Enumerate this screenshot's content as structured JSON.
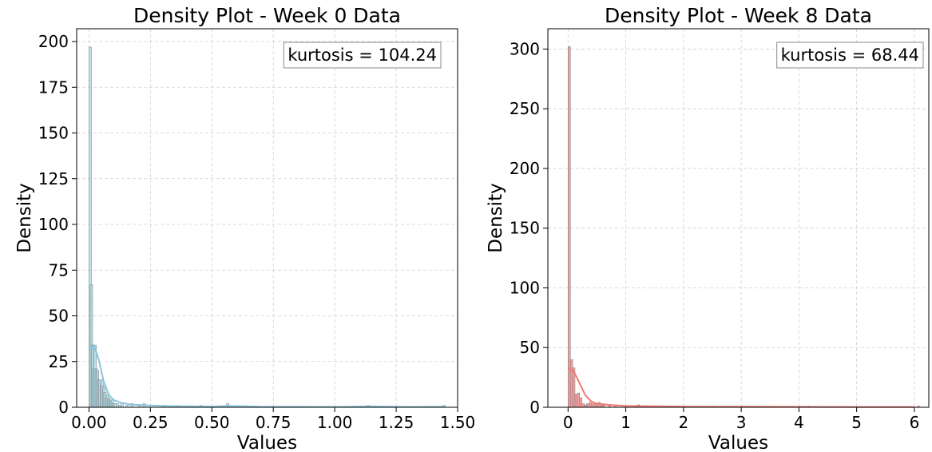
{
  "chart_data": [
    {
      "type": "bar",
      "title": "Density Plot - Week 0 Data",
      "xlabel": "Values",
      "ylabel": "Density",
      "xlim": [
        -0.05,
        1.5
      ],
      "ylim": [
        0,
        207
      ],
      "xticks": [
        "0.00",
        "0.25",
        "0.50",
        "0.75",
        "1.00",
        "1.25",
        "1.50"
      ],
      "yticks": [
        "0",
        "25",
        "50",
        "75",
        "100",
        "125",
        "150",
        "175",
        "200"
      ],
      "grid": true,
      "annotation": "kurtosis = 104.24",
      "annotation_position": "top-right",
      "bar_color": "#add8e6",
      "kde_color": "#87c4dc",
      "bin_width": 0.01,
      "bins": [
        {
          "x": 0.0,
          "y": 197
        },
        {
          "x": 0.005,
          "y": 67
        },
        {
          "x": 0.01,
          "y": 34
        },
        {
          "x": 0.015,
          "y": 21
        },
        {
          "x": 0.02,
          "y": 34
        },
        {
          "x": 0.025,
          "y": 21
        },
        {
          "x": 0.03,
          "y": 20
        },
        {
          "x": 0.035,
          "y": 15
        },
        {
          "x": 0.04,
          "y": 15
        },
        {
          "x": 0.045,
          "y": 12
        },
        {
          "x": 0.05,
          "y": 15
        },
        {
          "x": 0.055,
          "y": 11
        },
        {
          "x": 0.06,
          "y": 8
        },
        {
          "x": 0.065,
          "y": 5
        },
        {
          "x": 0.07,
          "y": 7
        },
        {
          "x": 0.075,
          "y": 5
        },
        {
          "x": 0.08,
          "y": 4
        },
        {
          "x": 0.085,
          "y": 3
        },
        {
          "x": 0.09,
          "y": 4
        },
        {
          "x": 0.095,
          "y": 2
        },
        {
          "x": 0.1,
          "y": 2
        },
        {
          "x": 0.11,
          "y": 2
        },
        {
          "x": 0.12,
          "y": 1
        },
        {
          "x": 0.13,
          "y": 2
        },
        {
          "x": 0.15,
          "y": 1
        },
        {
          "x": 0.17,
          "y": 2
        },
        {
          "x": 0.2,
          "y": 1
        },
        {
          "x": 0.22,
          "y": 2
        },
        {
          "x": 0.3,
          "y": 1
        },
        {
          "x": 0.35,
          "y": 1
        },
        {
          "x": 0.45,
          "y": 1
        },
        {
          "x": 0.56,
          "y": 2
        },
        {
          "x": 1.13,
          "y": 1
        },
        {
          "x": 1.44,
          "y": 1
        }
      ],
      "kde": [
        [
          0.0,
          31
        ],
        [
          0.02,
          34
        ],
        [
          0.04,
          26
        ],
        [
          0.06,
          14
        ],
        [
          0.08,
          7
        ],
        [
          0.1,
          4
        ],
        [
          0.13,
          2.5
        ],
        [
          0.17,
          1.5
        ],
        [
          0.25,
          1
        ],
        [
          0.35,
          0.6
        ],
        [
          0.5,
          0.4
        ],
        [
          0.57,
          0.8
        ],
        [
          0.7,
          0.3
        ],
        [
          1.0,
          0.2
        ],
        [
          1.14,
          0.5
        ],
        [
          1.3,
          0.2
        ],
        [
          1.45,
          0.3
        ]
      ]
    },
    {
      "type": "bar",
      "title": "Density Plot - Week 8 Data",
      "xlabel": "Values",
      "ylabel": "Density",
      "xlim": [
        -0.35,
        6.25
      ],
      "ylim": [
        0,
        317
      ],
      "xticks": [
        "0",
        "1",
        "2",
        "3",
        "4",
        "5",
        "6"
      ],
      "yticks": [
        "0",
        "50",
        "100",
        "150",
        "200",
        "250",
        "300"
      ],
      "grid": true,
      "annotation": "kurtosis = 68.44",
      "annotation_position": "top-right",
      "bar_color": "#f08080",
      "kde_color": "#f07a72",
      "bin_width": 0.04,
      "bins": [
        {
          "x": 0.0,
          "y": 302
        },
        {
          "x": 0.04,
          "y": 40
        },
        {
          "x": 0.08,
          "y": 33
        },
        {
          "x": 0.12,
          "y": 11
        },
        {
          "x": 0.16,
          "y": 12
        },
        {
          "x": 0.2,
          "y": 8
        },
        {
          "x": 0.24,
          "y": 3
        },
        {
          "x": 0.28,
          "y": 2
        },
        {
          "x": 0.32,
          "y": 3
        },
        {
          "x": 0.36,
          "y": 4
        },
        {
          "x": 0.4,
          "y": 3
        },
        {
          "x": 0.44,
          "y": 4
        },
        {
          "x": 0.48,
          "y": 3
        },
        {
          "x": 0.52,
          "y": 4
        },
        {
          "x": 0.56,
          "y": 2
        },
        {
          "x": 0.6,
          "y": 3
        },
        {
          "x": 0.7,
          "y": 2
        },
        {
          "x": 0.8,
          "y": 2
        },
        {
          "x": 1.0,
          "y": 1
        },
        {
          "x": 1.2,
          "y": 2
        },
        {
          "x": 1.5,
          "y": 1
        },
        {
          "x": 2.0,
          "y": 1
        },
        {
          "x": 2.5,
          "y": 1
        },
        {
          "x": 3.0,
          "y": 1
        },
        {
          "x": 4.15,
          "y": 1
        },
        {
          "x": 6.05,
          "y": 1
        }
      ],
      "kde": [
        [
          0.0,
          33
        ],
        [
          0.1,
          30
        ],
        [
          0.2,
          20
        ],
        [
          0.3,
          10
        ],
        [
          0.4,
          5
        ],
        [
          0.5,
          3
        ],
        [
          0.7,
          2
        ],
        [
          1.0,
          1.2
        ],
        [
          1.5,
          0.8
        ],
        [
          2.0,
          0.6
        ],
        [
          3.0,
          0.5
        ],
        [
          4.0,
          0.4
        ],
        [
          5.0,
          0.3
        ],
        [
          6.0,
          0.3
        ]
      ]
    }
  ]
}
